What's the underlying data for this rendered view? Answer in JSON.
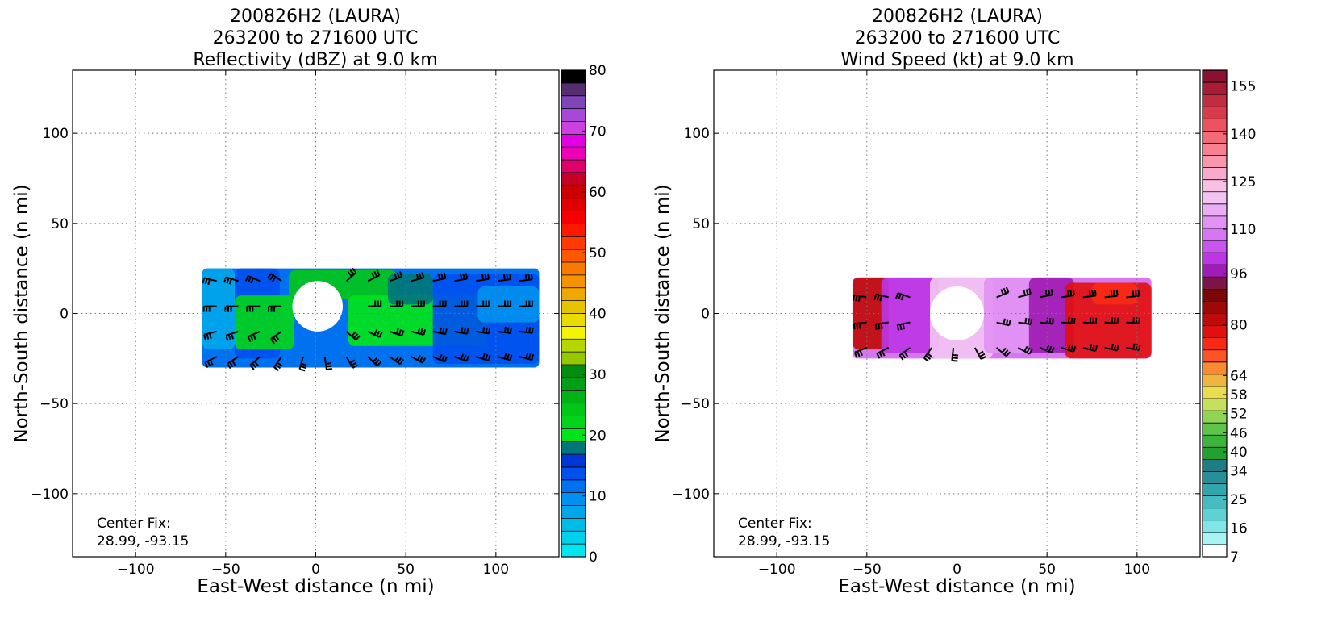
{
  "chart_data": [
    {
      "type": "heatmap",
      "title_lines": [
        "200826H2 (LAURA)",
        "263200 to 271600 UTC",
        "Reflectivity (dBZ) at 9.0 km"
      ],
      "xlabel": "East-West distance (n mi)",
      "ylabel": "North-South distance (n mi)",
      "xlim": [
        -135,
        135
      ],
      "ylim": [
        -135,
        135
      ],
      "x_ticks": [
        -100,
        -50,
        0,
        50,
        100
      ],
      "y_ticks": [
        -100,
        -50,
        0,
        50,
        100
      ],
      "x_tick_labels": [
        "−100",
        "−50",
        "0",
        "50",
        "100"
      ],
      "y_tick_labels": [
        "−100",
        "−50",
        "0",
        "50",
        "100"
      ],
      "grid": true,
      "annotation_lines": [
        "Center Fix:",
        "28.99, -93.15"
      ],
      "colorbar": {
        "min": 0,
        "max": 80,
        "tick_values": [
          0,
          10,
          20,
          30,
          40,
          50,
          60,
          70,
          80
        ],
        "tick_labels": [
          "0",
          "10",
          "20",
          "30",
          "40",
          "50",
          "60",
          "70",
          "80"
        ],
        "colors": [
          "#00e5ee",
          "#00d0ec",
          "#00bce8",
          "#00a6ea",
          "#0090ef",
          "#0072f0",
          "#0050ee",
          "#0036d6",
          "#00767a",
          "#00e41a",
          "#00d51a",
          "#00c61a",
          "#00b218",
          "#00a016",
          "#008d12",
          "#96c800",
          "#b6d600",
          "#f4f400",
          "#eadc00",
          "#e6c400",
          "#eea800",
          "#f49400",
          "#f87a00",
          "#fc5800",
          "#fe3a00",
          "#fd1800",
          "#f40000",
          "#e00000",
          "#cc0000",
          "#c40024",
          "#e0006a",
          "#ee00b6",
          "#e400e4",
          "#cc40e0",
          "#a848d6",
          "#7e46b8",
          "#542e6e",
          "#000000"
        ]
      },
      "data_extent": {
        "x": [
          -63,
          124
        ],
        "y": [
          -30,
          25
        ]
      },
      "eye": {
        "x": 1,
        "y": 4,
        "radius": 14
      },
      "fields": [
        {
          "x": [
            -63,
            -45
          ],
          "y": [
            -20,
            25
          ],
          "color": "#00a6ea"
        },
        {
          "x": [
            -45,
            -20
          ],
          "y": [
            -25,
            25
          ],
          "color": "#0050ee"
        },
        {
          "x": [
            -45,
            -12
          ],
          "y": [
            -20,
            10
          ],
          "color": "#00d51a"
        },
        {
          "x": [
            -15,
            45
          ],
          "y": [
            8,
            24
          ],
          "color": "#00c61a"
        },
        {
          "x": [
            18,
            95
          ],
          "y": [
            -18,
            10
          ],
          "color": "#00e41a"
        },
        {
          "x": [
            40,
            65
          ],
          "y": [
            5,
            22
          ],
          "color": "#00767a"
        },
        {
          "x": [
            65,
            124
          ],
          "y": [
            -28,
            22
          ],
          "color": "#0050ee"
        },
        {
          "x": [
            90,
            124
          ],
          "y": [
            -5,
            15
          ],
          "color": "#0090ef"
        }
      ]
    },
    {
      "type": "heatmap",
      "title_lines": [
        "200826H2 (LAURA)",
        "263200 to 271600 UTC",
        "Wind Speed (kt) at 9.0 km"
      ],
      "xlabel": "East-West distance (n mi)",
      "ylabel": "North-South distance (n mi)",
      "xlim": [
        -135,
        135
      ],
      "ylim": [
        -135,
        135
      ],
      "x_ticks": [
        -100,
        -50,
        0,
        50,
        100
      ],
      "y_ticks": [
        -100,
        -50,
        0,
        50,
        100
      ],
      "x_tick_labels": [
        "−100",
        "−50",
        "0",
        "50",
        "100"
      ],
      "y_tick_labels": [
        "−100",
        "−50",
        "0",
        "50",
        "100"
      ],
      "grid": true,
      "annotation_lines": [
        "Center Fix:",
        "28.99, -93.15"
      ],
      "colorbar": {
        "min": 7,
        "max": 160,
        "tick_values": [
          7,
          16,
          25,
          34,
          40,
          46,
          52,
          58,
          64,
          80,
          96,
          110,
          125,
          140,
          155
        ],
        "tick_labels": [
          "7",
          "16",
          "25",
          "34",
          "40",
          "46",
          "52",
          "58",
          "64",
          "80",
          "96",
          "110",
          "125",
          "140",
          "155"
        ],
        "colors": [
          "#ffffff",
          "#a8f4f4",
          "#7ee6e6",
          "#5cd2d4",
          "#44bcc2",
          "#30a6ae",
          "#269098",
          "#1e7c84",
          "#22a030",
          "#3cb43c",
          "#60c448",
          "#90d454",
          "#c4e05c",
          "#e8dc50",
          "#f0b440",
          "#fa8a32",
          "#fc5424",
          "#f82a14",
          "#e01010",
          "#c00a0a",
          "#a00808",
          "#7c0606",
          "#7c1448",
          "#a01cb4",
          "#bc36e4",
          "#c856ec",
          "#d676f2",
          "#e292f4",
          "#eaacf2",
          "#f2c4f2",
          "#f8c0e4",
          "#f8aacc",
          "#f896ac",
          "#f88090",
          "#f46a78",
          "#ec5260",
          "#d83c4c",
          "#c02c40",
          "#a81c36",
          "#8c1030"
        ]
      },
      "data_extent": {
        "x": [
          -58,
          108
        ],
        "y": [
          -25,
          20
        ]
      },
      "eye": {
        "x": 0,
        "y": 0,
        "radius": 15
      },
      "fields": [
        {
          "x": [
            -58,
            -38
          ],
          "y": [
            -20,
            20
          ],
          "color": "#c00a0a"
        },
        {
          "x": [
            -42,
            -10
          ],
          "y": [
            -22,
            20
          ],
          "color": "#bc36e4"
        },
        {
          "x": [
            -15,
            20
          ],
          "y": [
            -25,
            20
          ],
          "color": "#f2c4f2"
        },
        {
          "x": [
            15,
            42
          ],
          "y": [
            -22,
            20
          ],
          "color": "#e292f4"
        },
        {
          "x": [
            40,
            65
          ],
          "y": [
            -22,
            20
          ],
          "color": "#a01cb4"
        },
        {
          "x": [
            60,
            108
          ],
          "y": [
            -25,
            17
          ],
          "color": "#e01010"
        },
        {
          "x": [
            75,
            100
          ],
          "y": [
            5,
            17
          ],
          "color": "#f82a14"
        }
      ]
    }
  ]
}
